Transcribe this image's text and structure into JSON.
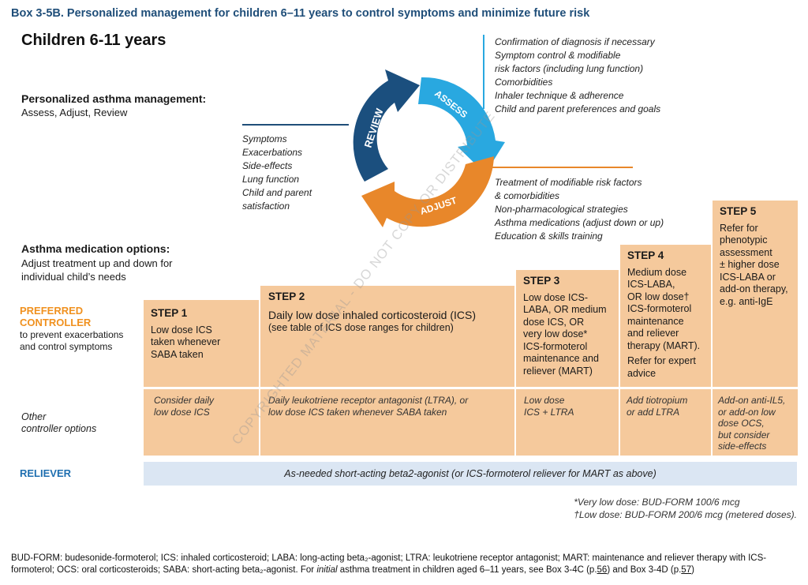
{
  "box_title": "Box 3-5B. Personalized management for children 6–11 years to control symptoms and minimize future risk",
  "children_title": "Children 6-11 years",
  "personalized": {
    "heading": "Personalized asthma management:",
    "sub": "Assess, Adjust, Review"
  },
  "cycle": {
    "assess_label": "ASSESS",
    "adjust_label": "ADJUST",
    "review_label": "REVIEW",
    "colors": {
      "assess": "#29a8e0",
      "adjust": "#e8872a",
      "review": "#1b4f7e",
      "assess_line": "#29a8e0",
      "review_line": "#1f4e79",
      "adjust_line": "#e8872a"
    }
  },
  "assess_items": [
    "Confirmation of diagnosis if necessary",
    "Symptom control & modifiable",
    "risk factors (including lung function)",
    "Comorbidities",
    "Inhaler technique & adherence",
    "Child and parent preferences and goals"
  ],
  "review_items": [
    "Symptoms",
    "Exacerbations",
    "Side-effects",
    "Lung function",
    "Child and parent",
    "satisfaction"
  ],
  "adjust_items": [
    "Treatment of modifiable risk factors",
    "& comorbidities",
    "Non-pharmacological strategies",
    "Asthma medications (adjust down or up)",
    "Education & skills training"
  ],
  "medication": {
    "heading": "Asthma medication options:",
    "sub": "Adjust treatment up and down for individual child’s needs"
  },
  "preferred_controller": {
    "label_line1": "PREFERRED",
    "label_line2": "CONTROLLER",
    "sub_line1": "to prevent exacerbations",
    "sub_line2": "and control symptoms"
  },
  "other_controller": {
    "label_line1": "Other",
    "label_line2": "controller options"
  },
  "steps": [
    {
      "title": "STEP 1",
      "lines": [
        "Low dose ICS",
        "taken whenever",
        "SABA taken"
      ],
      "other": [
        "Consider daily",
        "low dose ICS"
      ]
    },
    {
      "title": "STEP 2",
      "lines": [
        "Daily low dose inhaled corticosteroid (ICS)",
        "(see table of ICS dose ranges for children)"
      ],
      "other": [
        "Daily leukotriene receptor antagonist (LTRA), or",
        "low dose ICS taken whenever SABA taken"
      ]
    },
    {
      "title": "STEP 3",
      "lines": [
        "Low dose ICS-",
        "LABA, OR medium",
        "dose ICS, OR",
        "very low dose*",
        "ICS-formoterol",
        "maintenance and",
        "reliever (MART)"
      ],
      "other": [
        "Low dose",
        "ICS + LTRA"
      ]
    },
    {
      "title": "STEP 4",
      "lines": [
        "Medium dose",
        "ICS-LABA,",
        "OR low dose†",
        "ICS-formoterol",
        "maintenance",
        "and reliever",
        "therapy (MART).",
        "Refer for expert",
        "advice"
      ],
      "other": [
        "Add tiotropium",
        "or add LTRA"
      ]
    },
    {
      "title": "STEP 5",
      "lines": [
        "Refer for",
        "phenotypic",
        "assessment",
        "± higher dose",
        "ICS-LABA or",
        "add-on therapy,",
        "e.g. anti-IgE"
      ],
      "other": [
        "Add-on anti-IL5,",
        "or add-on low",
        "dose OCS,",
        "but consider",
        "side-effects"
      ]
    }
  ],
  "reliever": {
    "label": "RELIEVER",
    "text": "As-needed short-acting beta2-agonist (or ICS-formoterol reliever for MART as above)"
  },
  "footnotes": [
    "*Very low dose: BUD-FORM 100/6 mcg",
    "†Low dose: BUD-FORM 200/6 mcg (metered doses)."
  ],
  "bottom_note": {
    "part1": "BUD-FORM: budesonide-formoterol; ICS: inhaled corticosteroid; LABA: long-acting beta₂-agonist; LTRA: leukotriene receptor antagonist; MART: maintenance and reliever therapy with ICS-formoterol; OCS: oral corticosteroids; SABA: short-acting beta₂-agonist. For ",
    "italic": "initial",
    "part2": " asthma treatment in children aged 6–11 years, see Box 3-4C (p.",
    "page1": "56",
    "part3": ") and Box 3-4D (p.",
    "page2": "57",
    "part4": ")"
  },
  "watermark": "COPYRIGHTED MATERIAL - DO NOT COPY OR DISTRIBUTE",
  "colors": {
    "title_blue": "#1f4e79",
    "step_fill": "#f5c99c",
    "step_border": "#ffffff",
    "preferred": "#f0911f",
    "reliever_blue": "#1f6fb0",
    "reliever_bar": "#dbe6f3"
  }
}
